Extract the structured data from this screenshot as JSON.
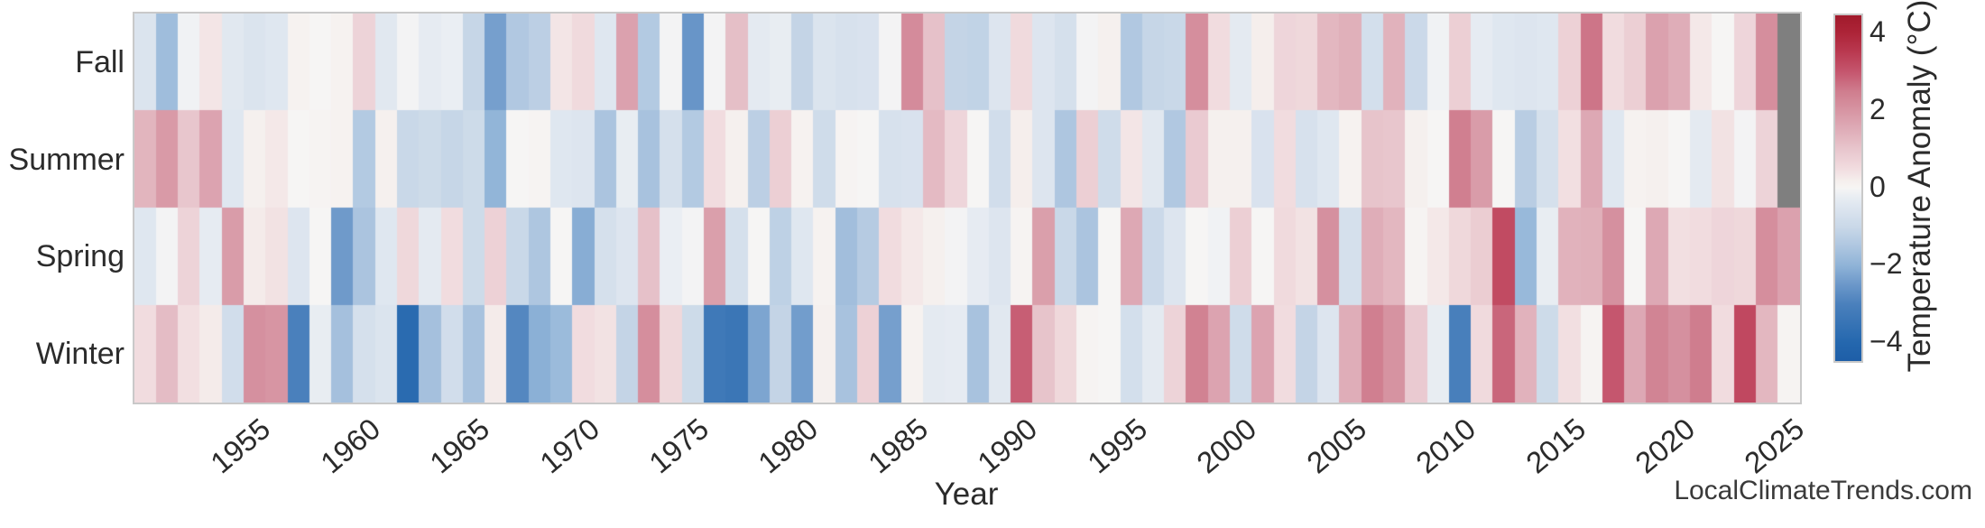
{
  "watermark": "LocalClimateTrends.com",
  "chart_data": {
    "type": "heatmap",
    "title": "",
    "xlabel": "Year",
    "colorbar_label": "Temperature Anomaly (°C)",
    "rows": [
      "Fall",
      "Summer",
      "Spring",
      "Winter"
    ],
    "year_start": 1950,
    "year_end": 2025,
    "x_tick_labels": [
      "1955",
      "1960",
      "1965",
      "1970",
      "1975",
      "1980",
      "1985",
      "1990",
      "1995",
      "2000",
      "2005",
      "2010",
      "2015",
      "2020",
      "2025"
    ],
    "x_tick_years": [
      1955,
      1960,
      1965,
      1970,
      1975,
      1980,
      1985,
      1990,
      1995,
      2000,
      2005,
      2010,
      2015,
      2020,
      2025
    ],
    "colorbar_tick_labels": [
      "4",
      "2",
      "0",
      "−2",
      "−4"
    ],
    "colorbar_tick_values": [
      4,
      2,
      0,
      -2,
      -4
    ],
    "value_range": [
      -4.46,
      4.46
    ],
    "grid": false,
    "legend_position": "right-colorbar",
    "nan_color": "#7f7f7f",
    "colormap_stops": [
      [
        -4.46,
        "#1e5ea7"
      ],
      [
        -4,
        "#2467ae"
      ],
      [
        -3,
        "#4a80bc"
      ],
      [
        -2.5,
        "#6b97c9"
      ],
      [
        -2,
        "#8fb3d7"
      ],
      [
        -1.5,
        "#aec6e0"
      ],
      [
        -1,
        "#c9d8e8"
      ],
      [
        -0.5,
        "#dde5ef"
      ],
      [
        -0.2,
        "#eaeef3"
      ],
      [
        0,
        "#f6f5f4"
      ],
      [
        0.2,
        "#f5eeec"
      ],
      [
        0.5,
        "#f1dcdf"
      ],
      [
        1,
        "#e8c6cd"
      ],
      [
        1.5,
        "#dfadb8"
      ],
      [
        2,
        "#d795a3"
      ],
      [
        2.5,
        "#cf7d8e"
      ],
      [
        3,
        "#c5566e"
      ],
      [
        3.5,
        "#ba3a51"
      ],
      [
        4,
        "#ad2438"
      ],
      [
        4.46,
        "#a11a2b"
      ]
    ],
    "series": [
      {
        "name": "Fall",
        "values": [
          -0.55,
          -1.75,
          -0.1,
          0.35,
          -0.4,
          -0.55,
          -0.45,
          0.1,
          0,
          0.1,
          0.7,
          -0.4,
          -0.05,
          -0.3,
          -0.2,
          -1.05,
          -2.35,
          -1.45,
          -1.25,
          0.35,
          0.55,
          -0.45,
          1.75,
          -1.4,
          -0.05,
          -2.55,
          -0.05,
          1.15,
          -0.35,
          -0.25,
          -1.1,
          -0.55,
          -0.65,
          -0.6,
          -0.05,
          2.2,
          1.1,
          -1.1,
          -1.15,
          -0.5,
          0.55,
          -0.5,
          -0.7,
          -0.05,
          0.15,
          -1.45,
          -1.05,
          -1.0,
          2.15,
          0.5,
          -0.35,
          0.2,
          0.65,
          0.6,
          1.3,
          1.45,
          -0.75,
          1.4,
          -0.95,
          -0.1,
          0.8,
          -0.3,
          -0.45,
          -0.5,
          -0.45,
          0.75,
          2.6,
          0.5,
          0.8,
          1.75,
          1.5,
          0.3,
          0,
          0.65,
          2.15,
          null
        ]
      },
      {
        "name": "Summer",
        "values": [
          1.35,
          1.9,
          1.0,
          1.7,
          -0.45,
          0.15,
          0.3,
          0,
          0.05,
          0.1,
          -1.4,
          0.15,
          -1.0,
          -0.9,
          -1.05,
          -0.9,
          -1.95,
          0,
          0.05,
          -0.45,
          -0.5,
          -1.55,
          -0.25,
          -1.6,
          -0.7,
          -1.4,
          0.5,
          0.15,
          -1.25,
          0.8,
          0.1,
          -0.85,
          0.05,
          0,
          -0.65,
          -0.6,
          1.25,
          0.65,
          0,
          -0.8,
          0.2,
          -0.5,
          -1.5,
          0.8,
          -0.85,
          0.35,
          -0.4,
          -1.45,
          0.9,
          0.15,
          0.15,
          -0.6,
          0.5,
          -0.65,
          -0.45,
          0.1,
          1.05,
          1.0,
          0.15,
          0,
          2.45,
          1.85,
          0,
          -1.3,
          -0.7,
          0.45,
          1.6,
          -0.45,
          0.1,
          0.15,
          0,
          -0.35,
          0.4,
          -0.05,
          0.7,
          null
        ]
      },
      {
        "name": "Spring",
        "values": [
          -0.45,
          -0.05,
          0.7,
          -0.3,
          1.85,
          0.25,
          0.4,
          -0.5,
          0,
          -2.45,
          -1.55,
          -0.45,
          0.6,
          -0.35,
          0.5,
          -0.9,
          0.75,
          -1.0,
          -1.5,
          0,
          -2.1,
          -0.7,
          -0.5,
          1.1,
          -0.2,
          -0.05,
          1.8,
          -0.7,
          0,
          -1.2,
          -0.45,
          0.1,
          -1.7,
          -1.35,
          0.5,
          0.3,
          0.15,
          -0.05,
          -0.3,
          -0.5,
          0.05,
          1.8,
          -1.0,
          -1.55,
          0,
          1.6,
          -0.95,
          -0.5,
          0,
          -0.1,
          0.8,
          0,
          0.55,
          0.4,
          2.1,
          -0.7,
          1.5,
          1.3,
          0.05,
          0.3,
          0.6,
          0.85,
          3.2,
          -1.85,
          -0.25,
          1.4,
          1.45,
          2.1,
          0,
          1.6,
          0.45,
          0.5,
          0.65,
          0.6,
          2.15,
          1.75
        ]
      },
      {
        "name": "Winter",
        "values": [
          0.5,
          1.2,
          0.45,
          0.25,
          -0.8,
          2.1,
          2.0,
          -3.0,
          -0.25,
          -1.65,
          -0.7,
          -0.55,
          -3.85,
          -1.65,
          -0.8,
          -1.6,
          0.25,
          -2.85,
          -2.05,
          -1.8,
          0.5,
          0.4,
          -1.1,
          2.15,
          0.6,
          -0.9,
          -3.3,
          -3.4,
          -2.25,
          -1.1,
          -2.4,
          0.15,
          -1.6,
          0.75,
          -2.35,
          0.1,
          -0.35,
          -0.3,
          -1.6,
          -0.4,
          2.9,
          1.05,
          0.6,
          0.05,
          0,
          -0.75,
          -0.35,
          0.7,
          2.4,
          1.7,
          -0.85,
          1.7,
          0.5,
          -1.1,
          -0.5,
          1.5,
          2.45,
          2.05,
          0.9,
          -0.25,
          -3.05,
          0.55,
          2.8,
          1.4,
          -0.9,
          0.45,
          0.05,
          3.0,
          1.6,
          2.35,
          2.1,
          2.5,
          0.5,
          3.25,
          1.3,
          0.05
        ]
      }
    ]
  }
}
